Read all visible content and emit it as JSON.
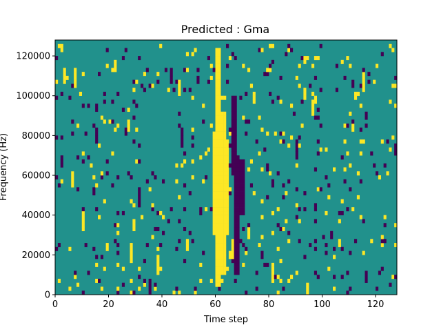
{
  "chart_data": {
    "type": "heatmap",
    "title": "Predicted : Gma",
    "xlabel": "Time step",
    "ylabel": "Frequency (Hz)",
    "xlim": [
      0,
      128
    ],
    "ylim": [
      0,
      128000
    ],
    "x_ticks": [
      0,
      20,
      40,
      60,
      80,
      100,
      120
    ],
    "y_ticks": [
      0,
      20000,
      40000,
      60000,
      80000,
      100000,
      120000
    ],
    "y_tick_labels": [
      "0",
      "20000",
      "40000",
      "60000",
      "80000",
      "100000",
      "120000"
    ],
    "colormap": "viridis",
    "levels": {
      "low": -1,
      "mid": 0,
      "high": 1
    },
    "colors": {
      "low": "#440154",
      "mid": "#21918c",
      "high": "#fde725"
    },
    "background_level": 0,
    "bins": {
      "time": 128,
      "frequency": 64,
      "frequency_bin_hz": 2000
    },
    "bright_band": {
      "level": 1,
      "segments": [
        {
          "t": [
            60,
            62
          ],
          "f": [
            4000,
            124000
          ]
        },
        {
          "t": [
            59,
            65
          ],
          "f": [
            30000,
            78000
          ]
        },
        {
          "t": [
            62,
            64
          ],
          "f": [
            10000,
            92000
          ]
        }
      ]
    },
    "dark_band": {
      "level": -1,
      "segments": [
        {
          "t": [
            66,
            68
          ],
          "f": [
            60000,
            100000
          ]
        },
        {
          "t": [
            67,
            69
          ],
          "f": [
            10000,
            70000
          ]
        },
        {
          "t": [
            69,
            71
          ],
          "f": [
            40000,
            68000
          ]
        }
      ]
    },
    "scatter_density": 0.06,
    "grid": false
  }
}
